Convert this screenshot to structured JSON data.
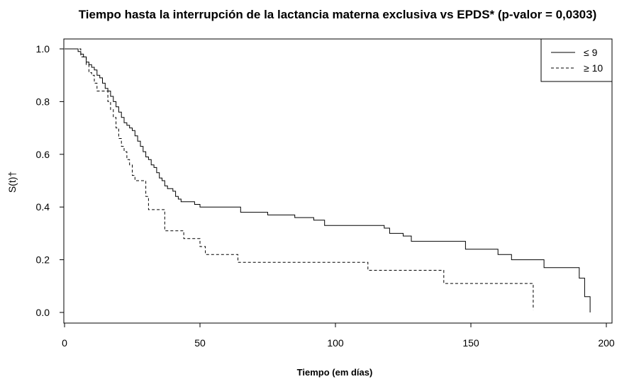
{
  "chart_data": {
    "type": "line",
    "title": "Tiempo hasta la interrupción de la lactancia materna exclusiva vs EPDS* (p-valor = 0,0303)",
    "xlabel": "Tiempo (em días)",
    "ylabel": "S(t)†",
    "xlim": [
      0,
      200
    ],
    "ylim": [
      0.0,
      1.0
    ],
    "xticks": [
      "0",
      "50",
      "100",
      "150",
      "200"
    ],
    "yticks": [
      "0.0",
      "0.2",
      "0.4",
      "0.6",
      "0.8",
      "1.0"
    ],
    "grid": false,
    "legend_position": "top-right",
    "step": true,
    "series": [
      {
        "name": "≤ 9",
        "line_style": "solid",
        "x": [
          0,
          5,
          6,
          7,
          8,
          9,
          10,
          11,
          12,
          13,
          14,
          15,
          16,
          17,
          18,
          19,
          20,
          21,
          22,
          23,
          24,
          25,
          26,
          27,
          28,
          29,
          30,
          31,
          32,
          33,
          34,
          35,
          36,
          37,
          38,
          40,
          41,
          42,
          43,
          45,
          48,
          50,
          55,
          60,
          65,
          75,
          85,
          92,
          96,
          110,
          118,
          120,
          125,
          128,
          133,
          140,
          148,
          160,
          165,
          177,
          190,
          192,
          194
        ],
        "y": [
          1.0,
          0.99,
          0.98,
          0.97,
          0.95,
          0.94,
          0.93,
          0.92,
          0.9,
          0.89,
          0.87,
          0.85,
          0.84,
          0.82,
          0.8,
          0.78,
          0.76,
          0.74,
          0.72,
          0.71,
          0.7,
          0.69,
          0.67,
          0.65,
          0.63,
          0.61,
          0.59,
          0.58,
          0.56,
          0.55,
          0.53,
          0.51,
          0.5,
          0.48,
          0.47,
          0.46,
          0.44,
          0.43,
          0.42,
          0.42,
          0.41,
          0.4,
          0.4,
          0.4,
          0.38,
          0.37,
          0.36,
          0.35,
          0.33,
          0.33,
          0.32,
          0.3,
          0.29,
          0.27,
          0.27,
          0.27,
          0.24,
          0.22,
          0.2,
          0.17,
          0.13,
          0.06,
          0.0
        ]
      },
      {
        "name": "≥ 10",
        "line_style": "dashed",
        "x": [
          0,
          6,
          8,
          9,
          10,
          11,
          12,
          16,
          17,
          18,
          19,
          20,
          21,
          22,
          23,
          24,
          25,
          26,
          27,
          30,
          31,
          33,
          37,
          38,
          44,
          50,
          52,
          64,
          112,
          140,
          173
        ],
        "y": [
          1.0,
          0.97,
          0.94,
          0.91,
          0.9,
          0.87,
          0.84,
          0.8,
          0.77,
          0.74,
          0.7,
          0.66,
          0.63,
          0.61,
          0.58,
          0.56,
          0.52,
          0.5,
          0.5,
          0.44,
          0.39,
          0.39,
          0.31,
          0.31,
          0.28,
          0.25,
          0.22,
          0.19,
          0.16,
          0.11,
          0.01
        ]
      }
    ]
  }
}
